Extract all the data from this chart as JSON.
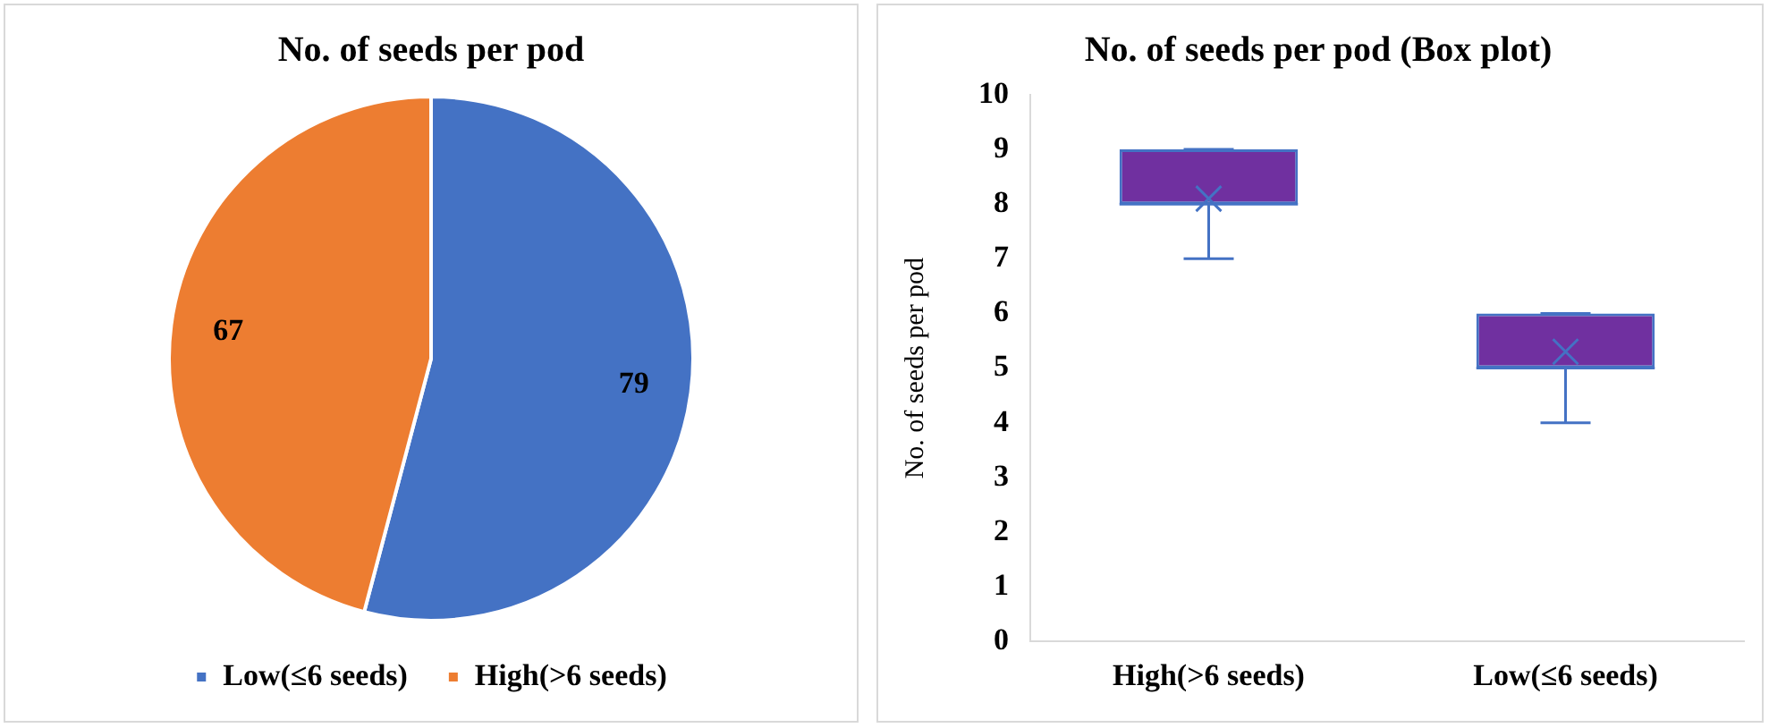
{
  "chart_data": [
    {
      "type": "pie",
      "title": "No. of seeds per pod",
      "categories": [
        "Low(≤6 seeds)",
        "High(>6 seeds)"
      ],
      "values": [
        79,
        67
      ],
      "colors": [
        "#4472c4",
        "#ed7d31"
      ],
      "data_labels": true,
      "legend": "bottom"
    },
    {
      "type": "box",
      "title": "No. of seeds per pod (Box plot)",
      "ylabel": "No. of seeds per pod",
      "categories": [
        "High(>6 seeds)",
        "Low(≤6 seeds)"
      ],
      "ylim": [
        0,
        10
      ],
      "yticks": [
        0,
        1,
        2,
        3,
        4,
        5,
        6,
        7,
        8,
        9,
        10
      ],
      "grid": false,
      "series": [
        {
          "color": "#7030a0",
          "boxes": [
            {
              "low": 7,
              "q1": 8,
              "median": 8,
              "q3": 9,
              "high": 9,
              "mean": 8.1
            },
            {
              "low": 4,
              "q1": 5,
              "median": 5,
              "q3": 6,
              "high": 6,
              "mean": 5.3
            }
          ]
        }
      ]
    }
  ]
}
